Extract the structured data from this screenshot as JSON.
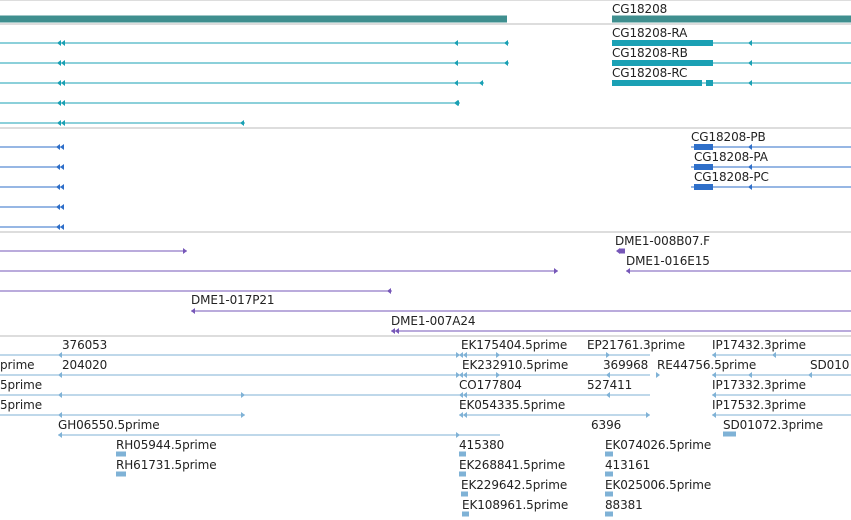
{
  "colors": {
    "gene": "#3f8f8f",
    "cdna": "#1aa0b4",
    "protein": "#2f6fc9",
    "clone": "#7657b8",
    "est": "#7fb2d6",
    "divider": "#bbbbbb"
  },
  "tracks": {
    "genes": {
      "labels": [
        "CG18208"
      ]
    },
    "transcripts": {
      "labels": [
        "CG18208-RA",
        "CG18208-RB",
        "CG18208-RC"
      ]
    },
    "proteins": {
      "labels": [
        "CG18208-PB",
        "CG18208-PA",
        "CG18208-PC"
      ]
    },
    "clones": {
      "labels": [
        "DME1-008B07.F",
        "DME1-016E15",
        "DME1-017P21",
        "DME1-007A24"
      ]
    },
    "ests": {
      "labels": [
        "376053",
        "EK175404.5prime",
        "EP21761.3prime",
        "IP17432.3prime",
        "prime",
        "204020",
        "EK232910.5prime",
        "369968",
        "RE44756.5prime",
        "SD010",
        "5prime",
        "CO177804",
        "527411",
        "IP17332.3prime",
        "5prime",
        "EK054335.5prime",
        "IP17532.3prime",
        "GH06550.5prime",
        "415380",
        "6396",
        "SD01072.3prime",
        "EK074026.5prime",
        "RH05944.5prime",
        "EK268841.5prime",
        "413161",
        "RH61731.5prime",
        "EK229642.5prime",
        "EK025006.5prime",
        "EK108961.5prime",
        "88381"
      ]
    }
  }
}
